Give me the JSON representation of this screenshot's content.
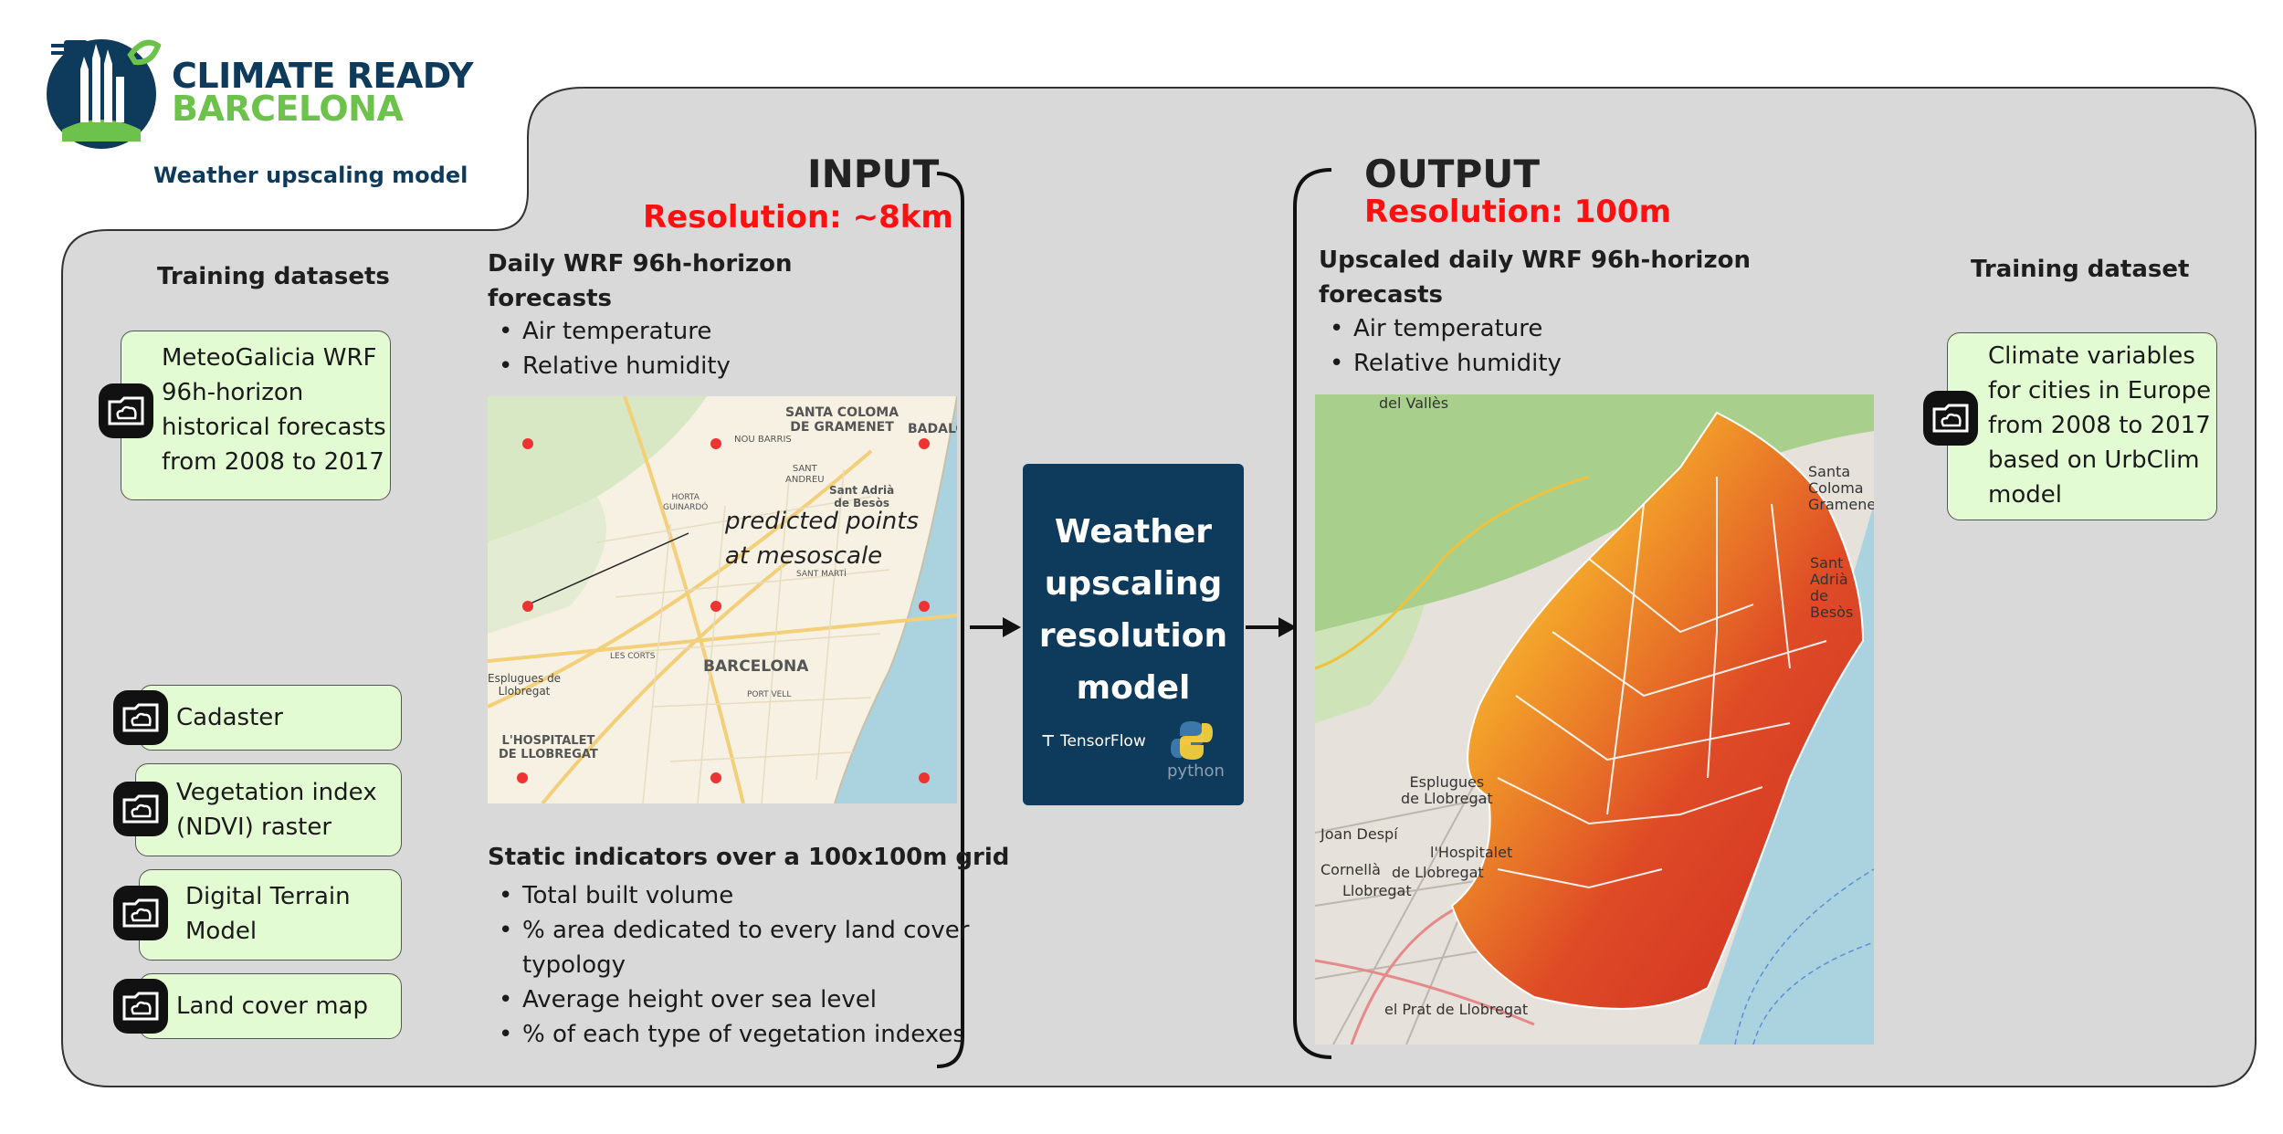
{
  "logo": {
    "line1": "CLIMATE READY",
    "line2": "BARCELONA",
    "subtitle": "Weather upscaling model"
  },
  "left": {
    "heading": "Training datasets",
    "main_dataset": [
      "MeteoGalicia WRF",
      "96h-horizon",
      "historical forecasts",
      "from 2008 to 2017"
    ],
    "static_datasets": [
      {
        "lines": [
          "Cadaster"
        ]
      },
      {
        "lines": [
          "Vegetation index",
          "(NDVI) raster"
        ]
      },
      {
        "lines": [
          "Digital Terrain",
          "Model"
        ]
      },
      {
        "lines": [
          "Land cover map"
        ]
      }
    ]
  },
  "input": {
    "title": "INPUT",
    "resolution": "Resolution: ~8km",
    "forecast_heading": [
      "Daily WRF 96h-horizon",
      "forecasts"
    ],
    "forecast_vars": [
      "Air temperature",
      "Relative humidity"
    ],
    "map_annotation": [
      "predicted points",
      "at mesoscale"
    ],
    "map_labels": [
      "SANTA COLOMA",
      "DE GRAMENET",
      "BADALO",
      "NOU BARRIS",
      "SANT",
      "ANDREU",
      "HORTA",
      "GUINARDÓ",
      "Sant Adrià",
      "de Besòs",
      "SANT MARTÍ",
      "LES CORTS",
      "BARCELONA",
      "PORT VELL",
      "Esplugues de",
      "Llobregat",
      "L'HOSPITALET",
      "DE LLOBREGAT"
    ],
    "static_heading": "Static indicators over a 100x100m grid",
    "static_items": [
      [
        "Total built volume"
      ],
      [
        "% area dedicated to every land cover",
        "typology"
      ],
      [
        "Average height over sea level"
      ],
      [
        "% of each type of vegetation indexes"
      ]
    ]
  },
  "model": {
    "lines": [
      "Weather",
      "upscaling",
      "resolution",
      "model"
    ],
    "tf_label": "TensorFlow",
    "py_label": "python"
  },
  "output": {
    "title": "OUTPUT",
    "resolution": "Resolution: 100m",
    "forecast_heading": [
      "Upscaled daily WRF 96h-horizon",
      "forecasts"
    ],
    "forecast_vars": [
      "Air temperature",
      "Relative humidity"
    ],
    "map_labels": [
      "del Vallès",
      "Santa Coloma",
      "Gramenet",
      "Sant Adrià",
      "de Besòs",
      "Esplugues",
      "de Llobregat",
      "Joan Despí",
      "l'Hospitalet",
      "Cornellà",
      "de Llobregat",
      "Llobregat",
      "el Prat de Llobregat"
    ]
  },
  "right": {
    "heading": "Training dataset",
    "dataset": [
      "Climate variables",
      "for cities in Europe",
      "from 2008 to 2017",
      "based on UrbClim",
      "model"
    ]
  },
  "colors": {
    "panel": "#d9d9d9",
    "navy": "#0e3a5b",
    "green": "#6cc24a",
    "box": "#e3fbd3",
    "red": "#ff1010"
  }
}
